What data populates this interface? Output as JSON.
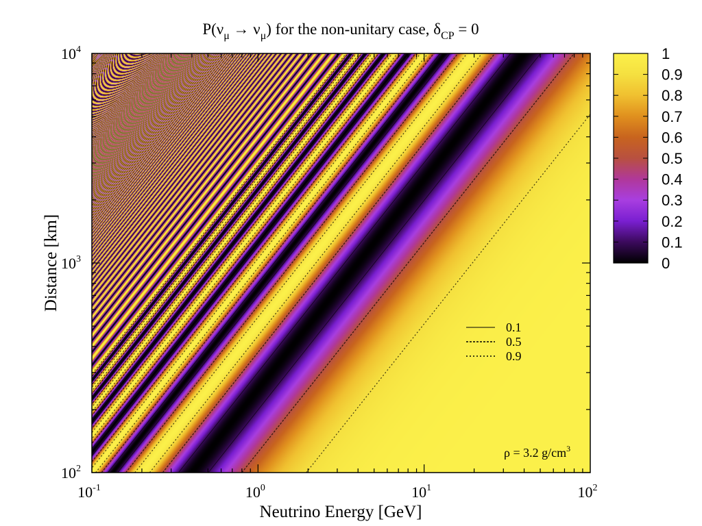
{
  "chart_data": {
    "type": "heatmap",
    "title": {
      "prefix": "P(ν",
      "sub1": "μ",
      "arrow": " → ν",
      "sub2": "μ",
      "suffix": ") for the non-unitary case, δ",
      "sub3": "CP",
      "tail": " = 0"
    },
    "xlabel": "Neutrino Energy [GeV]",
    "ylabel": "Distance [km]",
    "xscale": "log",
    "yscale": "log",
    "xlim": [
      0.1,
      100
    ],
    "ylim": [
      100,
      10000
    ],
    "x_ticks": [
      {
        "value": 0.1,
        "base": "10",
        "exp": "-1"
      },
      {
        "value": 1,
        "base": "10",
        "exp": "0"
      },
      {
        "value": 10,
        "base": "10",
        "exp": "1"
      },
      {
        "value": 100,
        "base": "10",
        "exp": "2"
      }
    ],
    "y_ticks": [
      {
        "value": 100,
        "base": "10",
        "exp": "2"
      },
      {
        "value": 1000,
        "base": "10",
        "exp": "3"
      },
      {
        "value": 10000,
        "base": "10",
        "exp": "4"
      }
    ],
    "colorbar": {
      "range": [
        0,
        1
      ],
      "ticks": [
        "0",
        "0.1",
        "0.2",
        "0.3",
        "0.4",
        "0.5",
        "0.6",
        "0.7",
        "0.8",
        "0.9",
        "1"
      ],
      "colormap": [
        "#000000",
        "#3b0a5c",
        "#7a1fd1",
        "#a83ee0",
        "#b0389a",
        "#b85040",
        "#c8641e",
        "#e0901e",
        "#f0c030",
        "#f5e040",
        "#fbf04a"
      ]
    },
    "contour_legend": [
      {
        "label": "0.1",
        "style": "solid"
      },
      {
        "label": "0.5",
        "style": "dashed"
      },
      {
        "label": "0.9",
        "style": "dotted"
      }
    ],
    "contour_levels": [
      0.1,
      0.5,
      0.9
    ],
    "annotation": {
      "text": "ρ = 3.2 g/cm",
      "sup": "3"
    },
    "oscillation_model": {
      "scale_L_over_E_km_per_GeV": 500,
      "grid": "on",
      "legend_placement": "lower-right"
    }
  }
}
